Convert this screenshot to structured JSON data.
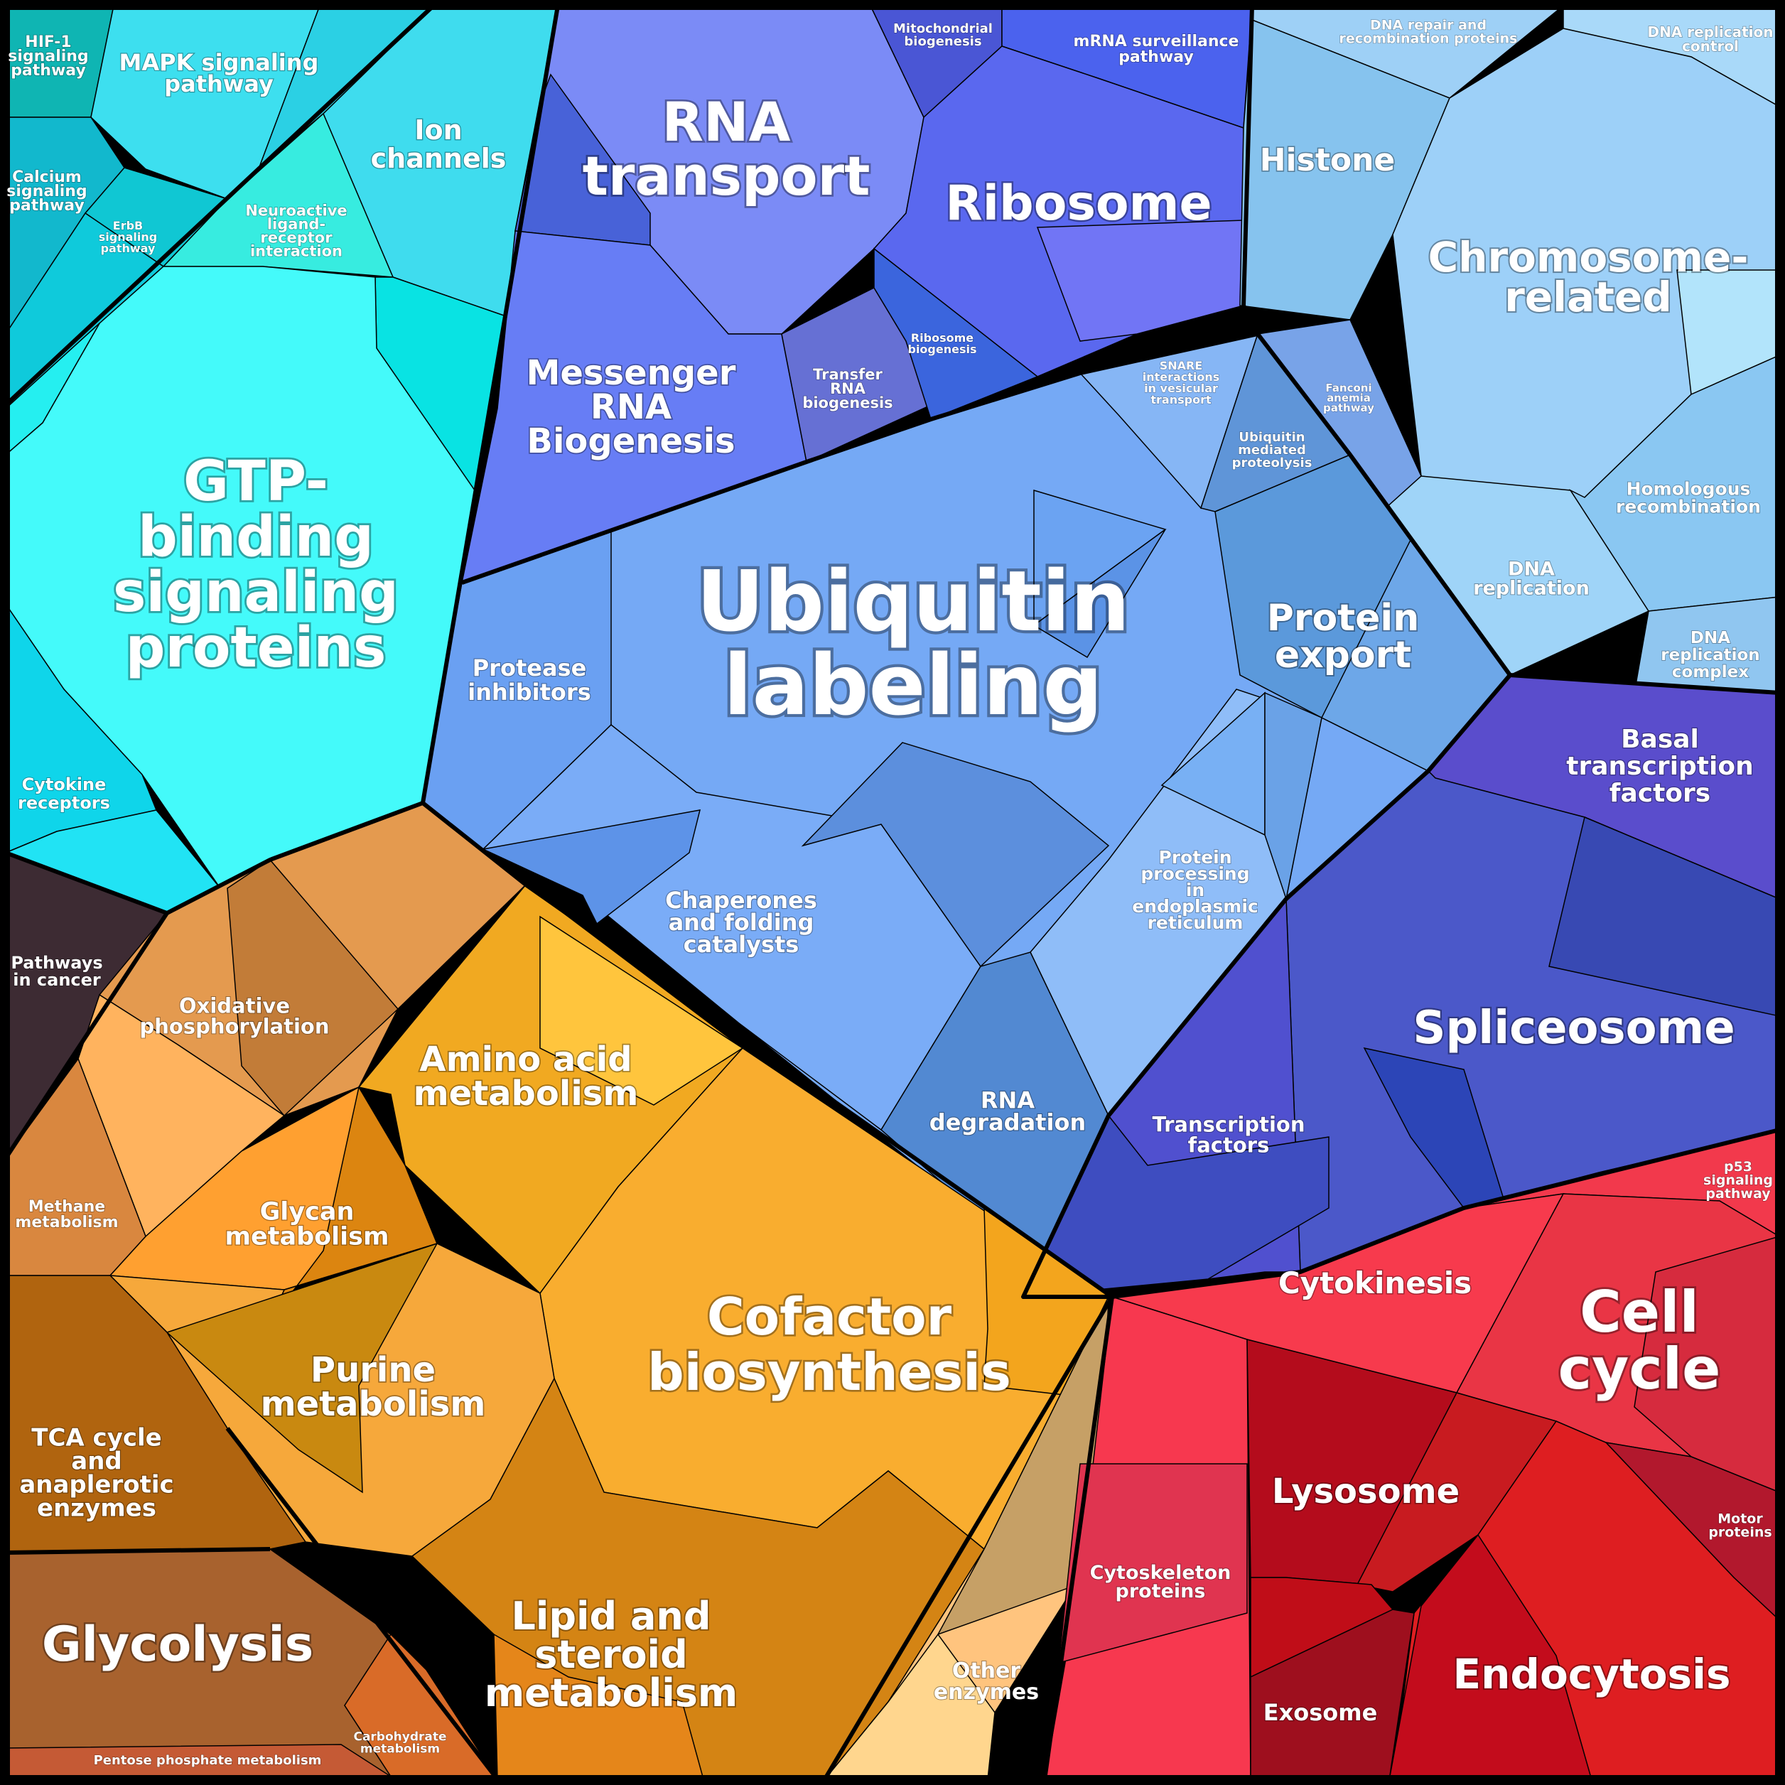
{
  "cell_labels": {
    "hif1": "HIF-1\nsignaling\npathway",
    "mapk": "MAPK signaling\npathway",
    "ion": "Ion\nchannels",
    "calcium": "Calcium\nsignaling\npathway",
    "erbb": "ErbB\nsignaling\npathway",
    "neuroactive": "Neuroactive\nligand-\nreceptor\ninteraction",
    "gtp": "GTP-\nbinding\nsignaling\nproteins",
    "cytokine": "Cytokine\nreceptors",
    "rna_transport": "RNA\ntransport",
    "mito": "Mitochondrial\nbiogenesis",
    "mrna_surv": "mRNA surveillance\npathway",
    "ribosome": "Ribosome",
    "mrna_bio": "Messenger\nRNA\nBiogenesis",
    "trna": "Transfer\nRNA\nbiogenesis",
    "ribo_bio": "Ribosome\nbiogenesis",
    "dna_repair": "DNA repair and\nrecombination proteins",
    "dna_rep_ctrl": "DNA replication\ncontrol",
    "histone": "Histone",
    "chromosome": "Chromosome-\nrelated",
    "snare": "SNARE\ninteractions\nin vesicular\ntransport",
    "fanconi": "Fanconi\nanemia\npathway",
    "ubiq_prot": "Ubiquitin\nmediated\nproteolysis",
    "homologous": "Homologous\nrecombination",
    "dna_rep": "DNA\nreplication",
    "dna_rep_complex": "DNA\nreplication\ncomplex",
    "ubiquitin": "Ubiquitin\nlabeling",
    "protein_export": "Protein\nexport",
    "protease": "Protease\ninhibitors",
    "basal": "Basal\ntranscription\nfactors",
    "pathways_cancer": "Pathways\nin cancer",
    "oxphos": "Oxidative\nphosphorylation",
    "chaperones": "Chaperones\nand folding\ncatalysts",
    "protein_er": "Protein\nprocessing\nin\nendoplasmic\nreticulum",
    "spliceosome": "Spliceosome",
    "amino": "Amino acid\nmetabolism",
    "rna_deg": "RNA\ndegradation",
    "transcription": "Transcription\nfactors",
    "methane": "Methane\nmetabolism",
    "glycan": "Glycan\nmetabolism",
    "p53": "p53\nsignaling\npathway",
    "cytokinesis": "Cytokinesis",
    "cell_cycle": "Cell\ncycle",
    "cofactor": "Cofactor\nbiosynthesis",
    "purine": "Purine\nmetabolism",
    "tca": "TCA cycle\nand\nanaplerotic\nenzymes",
    "lysosome": "Lysosome",
    "motor": "Motor\nproteins",
    "cytoskeleton": "Cytoskeleton\nproteins",
    "lipid": "Lipid and\nsteroid\nmetabolism",
    "glycolysis": "Glycolysis",
    "other": "Other\nenzymes",
    "endocytosis": "Endocytosis",
    "exosome": "Exosome",
    "carbohydrate": "Carbohydrate\nmetabolism",
    "pentose": "Pentose phosphate metabolism"
  },
  "colors": {
    "signaling": "#22e0ef",
    "gene_expression": "#6a7cf2",
    "genetic_info": "#9fd2f8",
    "protein_fate": "#70a8f5",
    "transcription": "#4a55cc",
    "metabolism": "#f1a630",
    "cellular_processes": "#e0283d",
    "pathways_cancer": "#3d2b33",
    "brown": "#a65f1c"
  }
}
